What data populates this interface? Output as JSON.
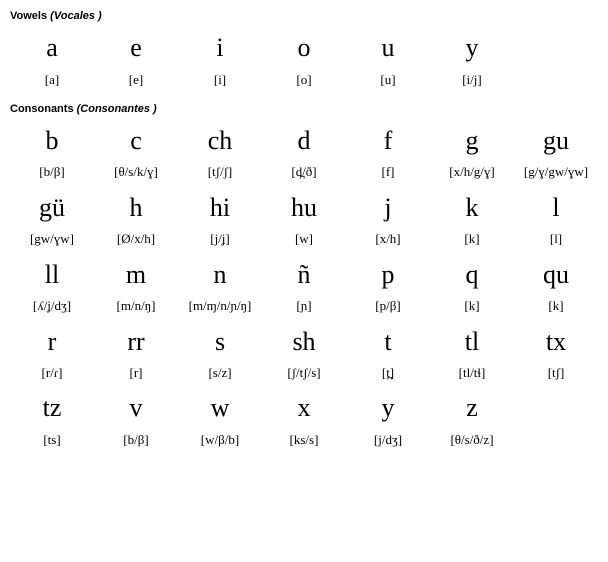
{
  "vowels": {
    "title_bold": "Vowels",
    "title_italic": "(Vocales )",
    "cells": [
      {
        "letter": "a",
        "ipa": "[a]"
      },
      {
        "letter": "e",
        "ipa": "[e]"
      },
      {
        "letter": "i",
        "ipa": "[i]"
      },
      {
        "letter": "o",
        "ipa": "[o]"
      },
      {
        "letter": "u",
        "ipa": "[u]"
      },
      {
        "letter": "y",
        "ipa": "[i/j]"
      }
    ]
  },
  "consonants": {
    "title_bold": "Consonants",
    "title_italic": "(Consonantes )",
    "cells": [
      {
        "letter": "b",
        "ipa": "[b/β]"
      },
      {
        "letter": "c",
        "ipa": "[θ/s/k/ɣ]"
      },
      {
        "letter": "ch",
        "ipa": "[tʃ/ʃ]"
      },
      {
        "letter": "d",
        "ipa": "[d̪/ð]"
      },
      {
        "letter": "f",
        "ipa": "[f]"
      },
      {
        "letter": "g",
        "ipa": "[x/h/g/ɣ]"
      },
      {
        "letter": "gu",
        "ipa": "[g/ɣ/gw/ɣw]"
      },
      {
        "letter": "gü",
        "ipa": "[gw/ɣw]"
      },
      {
        "letter": "h",
        "ipa": "[Ø/x/h]"
      },
      {
        "letter": "hi",
        "ipa": "[j/ʝ]"
      },
      {
        "letter": "hu",
        "ipa": "[w]"
      },
      {
        "letter": "j",
        "ipa": "[x/h]"
      },
      {
        "letter": "k",
        "ipa": "[k]"
      },
      {
        "letter": "l",
        "ipa": "[l]"
      },
      {
        "letter": "ll",
        "ipa": "[ʎ/ʝ/dʒ]"
      },
      {
        "letter": "m",
        "ipa": "[m/n/ŋ]"
      },
      {
        "letter": "n",
        "ipa": "[m/ɱ/n/ɲ/ŋ]"
      },
      {
        "letter": "ñ",
        "ipa": "[ɲ]"
      },
      {
        "letter": "p",
        "ipa": "[p/β]"
      },
      {
        "letter": "q",
        "ipa": "[k]"
      },
      {
        "letter": "qu",
        "ipa": "[k]"
      },
      {
        "letter": "r",
        "ipa": "[r/ɾ]"
      },
      {
        "letter": "rr",
        "ipa": "[r]"
      },
      {
        "letter": "s",
        "ipa": "[s/z]"
      },
      {
        "letter": "sh",
        "ipa": "[ʃ/tʃ/s]"
      },
      {
        "letter": "t",
        "ipa": "[t̪]"
      },
      {
        "letter": "tl",
        "ipa": "[tl/tɬ]"
      },
      {
        "letter": "tx",
        "ipa": "[tʃ]"
      },
      {
        "letter": "tz",
        "ipa": "[ts]"
      },
      {
        "letter": "v",
        "ipa": "[b/β]"
      },
      {
        "letter": "w",
        "ipa": "[w/β/b]"
      },
      {
        "letter": "x",
        "ipa": "[ks/s]"
      },
      {
        "letter": "y",
        "ipa": "[j/dʒ]"
      },
      {
        "letter": "z",
        "ipa": "[θ/s/ð/z]"
      }
    ]
  },
  "layout": {
    "columns": 7,
    "letter_fontsize": 26,
    "ipa_fontsize": 13,
    "title_fontsize": 11,
    "background_color": "#ffffff",
    "text_color": "#000000"
  }
}
